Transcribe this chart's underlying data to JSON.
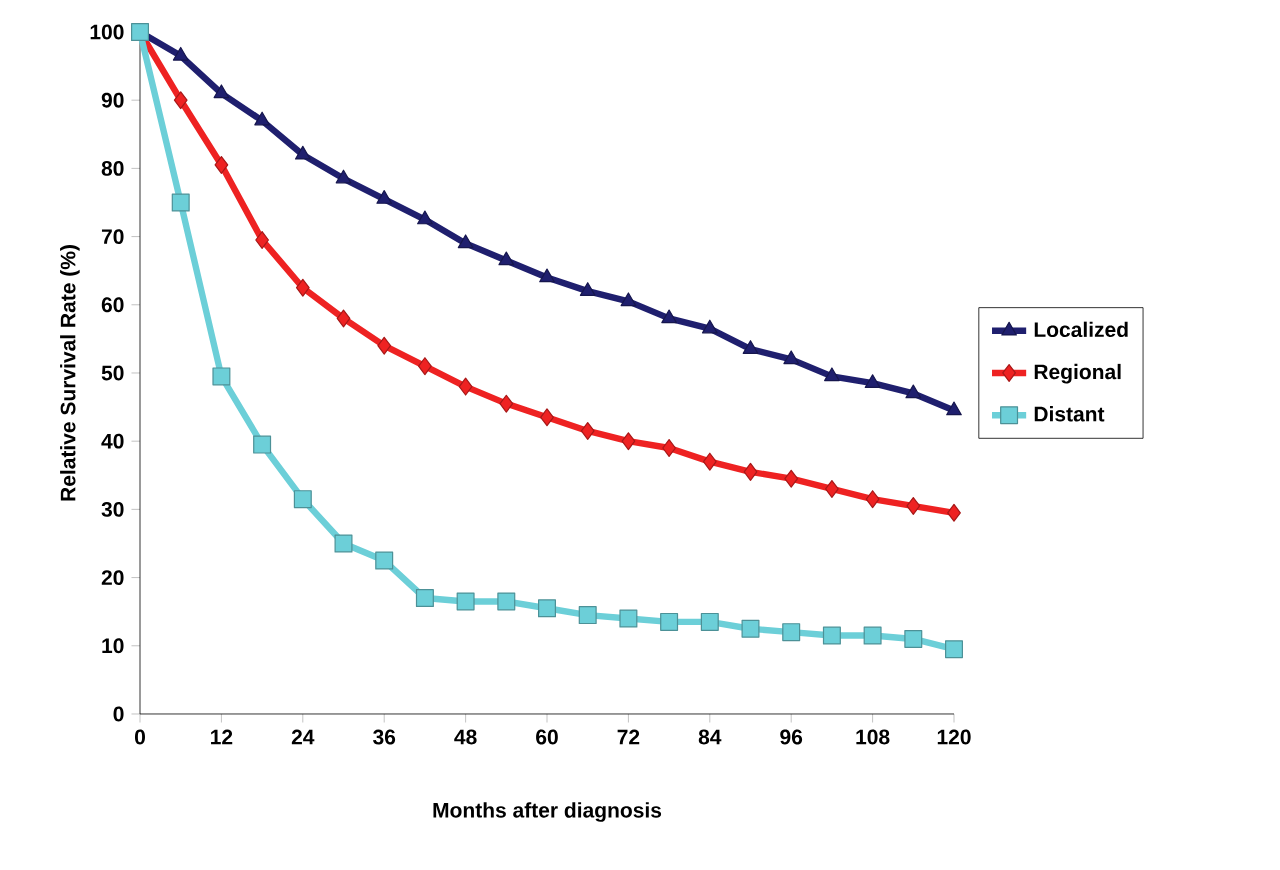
{
  "chart_data": {
    "type": "line",
    "xlabel": "Months after diagnosis",
    "ylabel": "Relative Survival Rate (%)",
    "x": [
      0,
      6,
      12,
      18,
      24,
      30,
      36,
      42,
      48,
      54,
      60,
      66,
      72,
      78,
      84,
      90,
      96,
      102,
      108,
      114,
      120
    ],
    "series": [
      {
        "name": "Localized",
        "color": "#1f1f6e",
        "marker": "triangle",
        "values": [
          100,
          96.5,
          91,
          87,
          82,
          78.5,
          75.5,
          72.5,
          69,
          66.5,
          64,
          62,
          60.5,
          58,
          56.5,
          53.5,
          52,
          49.5,
          48.5,
          47,
          44.5
        ]
      },
      {
        "name": "Regional",
        "color": "#ee2222",
        "marker": "diamond",
        "values": [
          100,
          90,
          80.5,
          69.5,
          62.5,
          58,
          54,
          51,
          48,
          45.5,
          43.5,
          41.5,
          40,
          39,
          37,
          35.5,
          34.5,
          33,
          31.5,
          30.5,
          29.5
        ]
      },
      {
        "name": "Distant",
        "color": "#6ccfd8",
        "marker": "square",
        "values": [
          100,
          75,
          49.5,
          39.5,
          31.5,
          25,
          22.5,
          17,
          16.5,
          16.5,
          15.5,
          14.5,
          14,
          13.5,
          13.5,
          12.5,
          12,
          11.5,
          11.5,
          11,
          9.5
        ]
      }
    ],
    "xlim": [
      0,
      120
    ],
    "ylim": [
      0,
      100
    ],
    "xticks": [
      0,
      12,
      24,
      36,
      48,
      60,
      72,
      84,
      96,
      108,
      120
    ],
    "yticks": [
      0,
      10,
      20,
      30,
      40,
      50,
      60,
      70,
      80,
      90,
      100
    ],
    "grid": false,
    "legend": "right",
    "line_style": "solid"
  }
}
